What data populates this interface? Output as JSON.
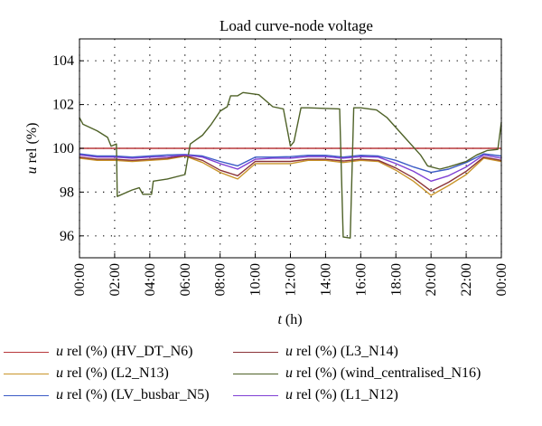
{
  "chart_data": {
    "type": "line",
    "title": "Load curve-node voltage",
    "xlabel": "t (h)",
    "ylabel": "u rel (%)",
    "xlim": [
      0,
      24
    ],
    "ylim": [
      95,
      105
    ],
    "x_ticks": [
      0,
      2,
      4,
      6,
      8,
      10,
      12,
      14,
      16,
      18,
      20,
      22,
      24
    ],
    "x_tick_labels": [
      "00:00",
      "02:00",
      "04:00",
      "06:00",
      "08:00",
      "10:00",
      "12:00",
      "14:00",
      "16:00",
      "18:00",
      "20:00",
      "22:00",
      "00:00"
    ],
    "y_ticks": [
      96,
      98,
      100,
      102,
      104
    ],
    "y_tick_labels": [
      "96",
      "98",
      "100",
      "102",
      "104"
    ],
    "grid": "dotted",
    "legend_position": "bottom",
    "series": [
      {
        "name": "u rel (%) (HV_DT_N6)",
        "color": "#b8383b",
        "points": [
          [
            0,
            100.0
          ],
          [
            24,
            100.0
          ]
        ]
      },
      {
        "name": "u rel (%) (L2_N13)",
        "color": "#c9952a",
        "points": [
          [
            0,
            99.55
          ],
          [
            1,
            99.45
          ],
          [
            2,
            99.45
          ],
          [
            3,
            99.4
          ],
          [
            4,
            99.45
          ],
          [
            5,
            99.5
          ],
          [
            6,
            99.65
          ],
          [
            7,
            99.35
          ],
          [
            8,
            98.9
          ],
          [
            9,
            98.6
          ],
          [
            10,
            99.3
          ],
          [
            11,
            99.3
          ],
          [
            12,
            99.3
          ],
          [
            13,
            99.45
          ],
          [
            14,
            99.45
          ],
          [
            15,
            99.35
          ],
          [
            16,
            99.45
          ],
          [
            17,
            99.4
          ],
          [
            18,
            99.0
          ],
          [
            19,
            98.5
          ],
          [
            20,
            97.85
          ],
          [
            21,
            98.3
          ],
          [
            22,
            98.8
          ],
          [
            23,
            99.55
          ],
          [
            24,
            99.4
          ]
        ]
      },
      {
        "name": "u rel (%) (LV_busbar_N5)",
        "color": "#3b5bc6",
        "points": [
          [
            0,
            99.75
          ],
          [
            1,
            99.65
          ],
          [
            2,
            99.65
          ],
          [
            3,
            99.6
          ],
          [
            4,
            99.65
          ],
          [
            5,
            99.7
          ],
          [
            6,
            99.72
          ],
          [
            7,
            99.65
          ],
          [
            8,
            99.4
          ],
          [
            9,
            99.2
          ],
          [
            10,
            99.6
          ],
          [
            11,
            99.6
          ],
          [
            12,
            99.62
          ],
          [
            13,
            99.68
          ],
          [
            14,
            99.68
          ],
          [
            15,
            99.6
          ],
          [
            16,
            99.68
          ],
          [
            17,
            99.65
          ],
          [
            18,
            99.45
          ],
          [
            19,
            99.15
          ],
          [
            20,
            98.9
          ],
          [
            21,
            99.05
          ],
          [
            22,
            99.35
          ],
          [
            23,
            99.75
          ],
          [
            24,
            99.65
          ]
        ]
      },
      {
        "name": "u rel (%) (L3_N14)",
        "color": "#8a3338",
        "points": [
          [
            0,
            99.6
          ],
          [
            1,
            99.5
          ],
          [
            2,
            99.5
          ],
          [
            3,
            99.45
          ],
          [
            4,
            99.5
          ],
          [
            5,
            99.55
          ],
          [
            6,
            99.67
          ],
          [
            7,
            99.45
          ],
          [
            8,
            99.0
          ],
          [
            9,
            98.75
          ],
          [
            10,
            99.4
          ],
          [
            11,
            99.4
          ],
          [
            12,
            99.4
          ],
          [
            13,
            99.5
          ],
          [
            14,
            99.5
          ],
          [
            15,
            99.42
          ],
          [
            16,
            99.5
          ],
          [
            17,
            99.45
          ],
          [
            18,
            99.1
          ],
          [
            19,
            98.65
          ],
          [
            20,
            98.05
          ],
          [
            21,
            98.45
          ],
          [
            22,
            98.95
          ],
          [
            23,
            99.6
          ],
          [
            24,
            99.45
          ]
        ]
      },
      {
        "name": "u rel (%) (wind_centralised_N16)",
        "color": "#4f6228",
        "points": [
          [
            0,
            101.4
          ],
          [
            0.2,
            101.1
          ],
          [
            1,
            100.8
          ],
          [
            1.6,
            100.5
          ],
          [
            1.8,
            100.1
          ],
          [
            2.1,
            100.2
          ],
          [
            2.15,
            97.8
          ],
          [
            3,
            98.1
          ],
          [
            3.4,
            98.2
          ],
          [
            3.6,
            97.9
          ],
          [
            4.1,
            97.9
          ],
          [
            4.2,
            98.5
          ],
          [
            5,
            98.6
          ],
          [
            6,
            98.8
          ],
          [
            6.3,
            100.2
          ],
          [
            7,
            100.6
          ],
          [
            7.5,
            101.1
          ],
          [
            8,
            101.7
          ],
          [
            8.4,
            101.9
          ],
          [
            8.6,
            102.4
          ],
          [
            9,
            102.4
          ],
          [
            9.3,
            102.55
          ],
          [
            10.2,
            102.45
          ],
          [
            11,
            101.9
          ],
          [
            11.6,
            101.8
          ],
          [
            12,
            100.1
          ],
          [
            12.2,
            100.3
          ],
          [
            12.6,
            101.85
          ],
          [
            13,
            101.85
          ],
          [
            14.8,
            101.8
          ],
          [
            15.0,
            95.95
          ],
          [
            15.4,
            95.9
          ],
          [
            15.6,
            101.85
          ],
          [
            16,
            101.85
          ],
          [
            16.9,
            101.75
          ],
          [
            17.5,
            101.4
          ],
          [
            18.5,
            100.5
          ],
          [
            19.4,
            99.7
          ],
          [
            19.8,
            99.2
          ],
          [
            20.5,
            99.05
          ],
          [
            21,
            99.15
          ],
          [
            22,
            99.4
          ],
          [
            22.6,
            99.7
          ],
          [
            23.2,
            99.9
          ],
          [
            23.8,
            99.95
          ],
          [
            24,
            101.2
          ]
        ]
      },
      {
        "name": "u rel (%) (L1_N12)",
        "color": "#7f3fd4",
        "points": [
          [
            0,
            99.7
          ],
          [
            1,
            99.6
          ],
          [
            2,
            99.6
          ],
          [
            3,
            99.55
          ],
          [
            4,
            99.6
          ],
          [
            5,
            99.62
          ],
          [
            6,
            99.7
          ],
          [
            7,
            99.6
          ],
          [
            8,
            99.3
          ],
          [
            9,
            99.05
          ],
          [
            10,
            99.5
          ],
          [
            11,
            99.55
          ],
          [
            12,
            99.55
          ],
          [
            13,
            99.62
          ],
          [
            14,
            99.62
          ],
          [
            15,
            99.55
          ],
          [
            16,
            99.62
          ],
          [
            17,
            99.6
          ],
          [
            18,
            99.3
          ],
          [
            19,
            98.95
          ],
          [
            20,
            98.5
          ],
          [
            21,
            98.75
          ],
          [
            22,
            99.15
          ],
          [
            23,
            99.7
          ],
          [
            24,
            99.55
          ]
        ]
      }
    ]
  }
}
